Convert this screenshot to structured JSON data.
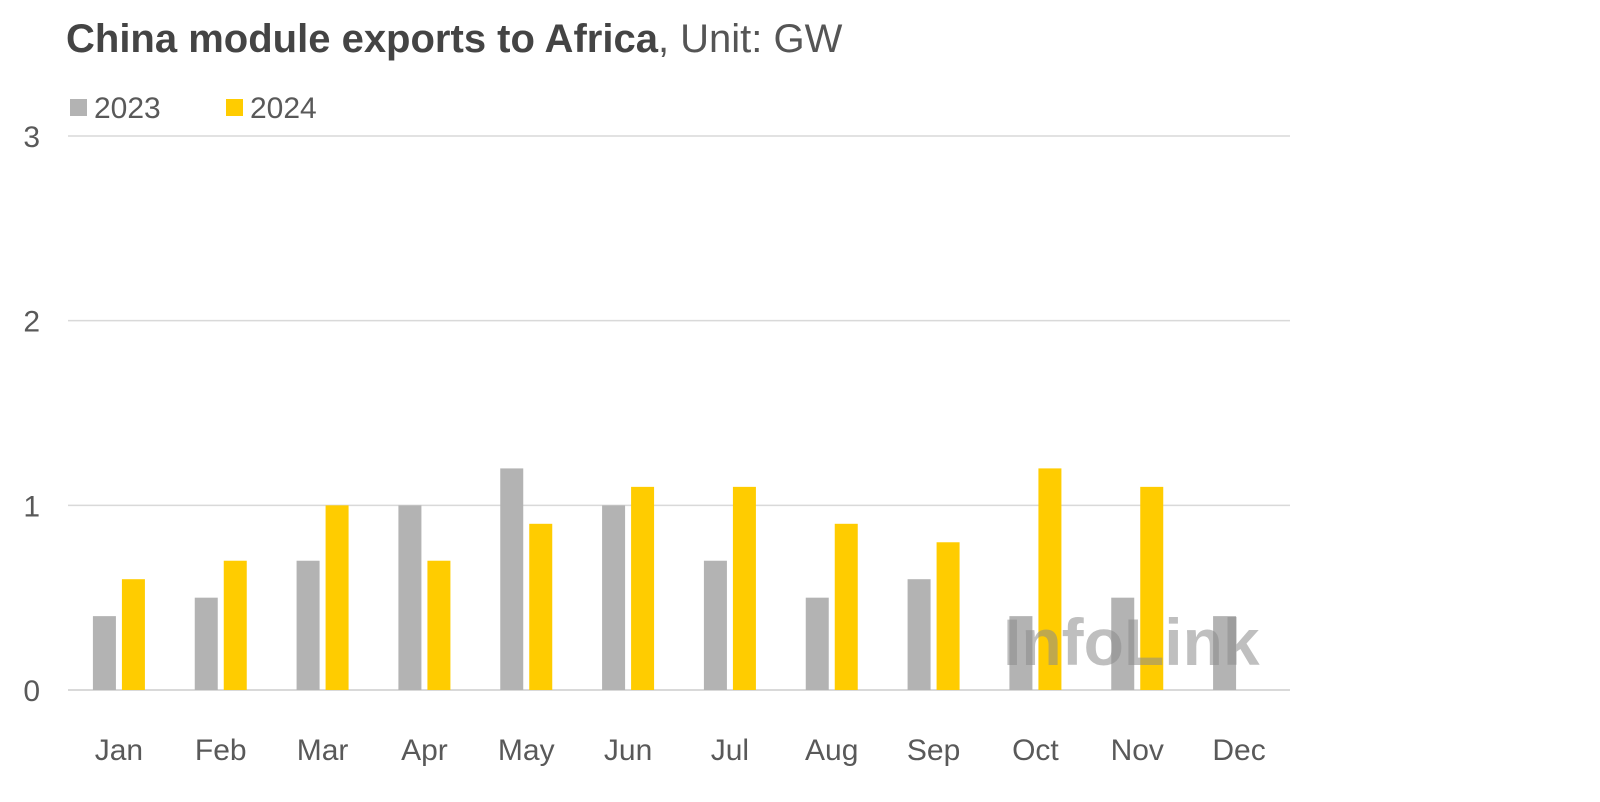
{
  "chart_data": {
    "type": "bar",
    "title": "China module exports to Africa",
    "subtitle": ", Unit: GW",
    "categories": [
      "Jan",
      "Feb",
      "Mar",
      "Apr",
      "May",
      "Jun",
      "Jul",
      "Aug",
      "Sep",
      "Oct",
      "Nov",
      "Dec"
    ],
    "series": [
      {
        "name": "2023",
        "color": "#b3b3b3",
        "values": [
          0.4,
          0.5,
          0.7,
          1.0,
          1.2,
          1.0,
          0.7,
          0.5,
          0.6,
          0.4,
          0.5,
          0.4
        ]
      },
      {
        "name": "2024",
        "color": "#ffcc00",
        "values": [
          0.6,
          0.7,
          1.0,
          0.7,
          0.9,
          1.1,
          1.1,
          0.9,
          0.8,
          1.2,
          1.1,
          null
        ]
      }
    ],
    "yticks": [
      "0",
      "1",
      "2",
      "3"
    ],
    "ylim": [
      0,
      3
    ],
    "xlabel": "",
    "ylabel": "",
    "grid": true,
    "legend_position": "top-left",
    "watermark": "InfoLink",
    "gridline_color": "#d9d9d9"
  }
}
